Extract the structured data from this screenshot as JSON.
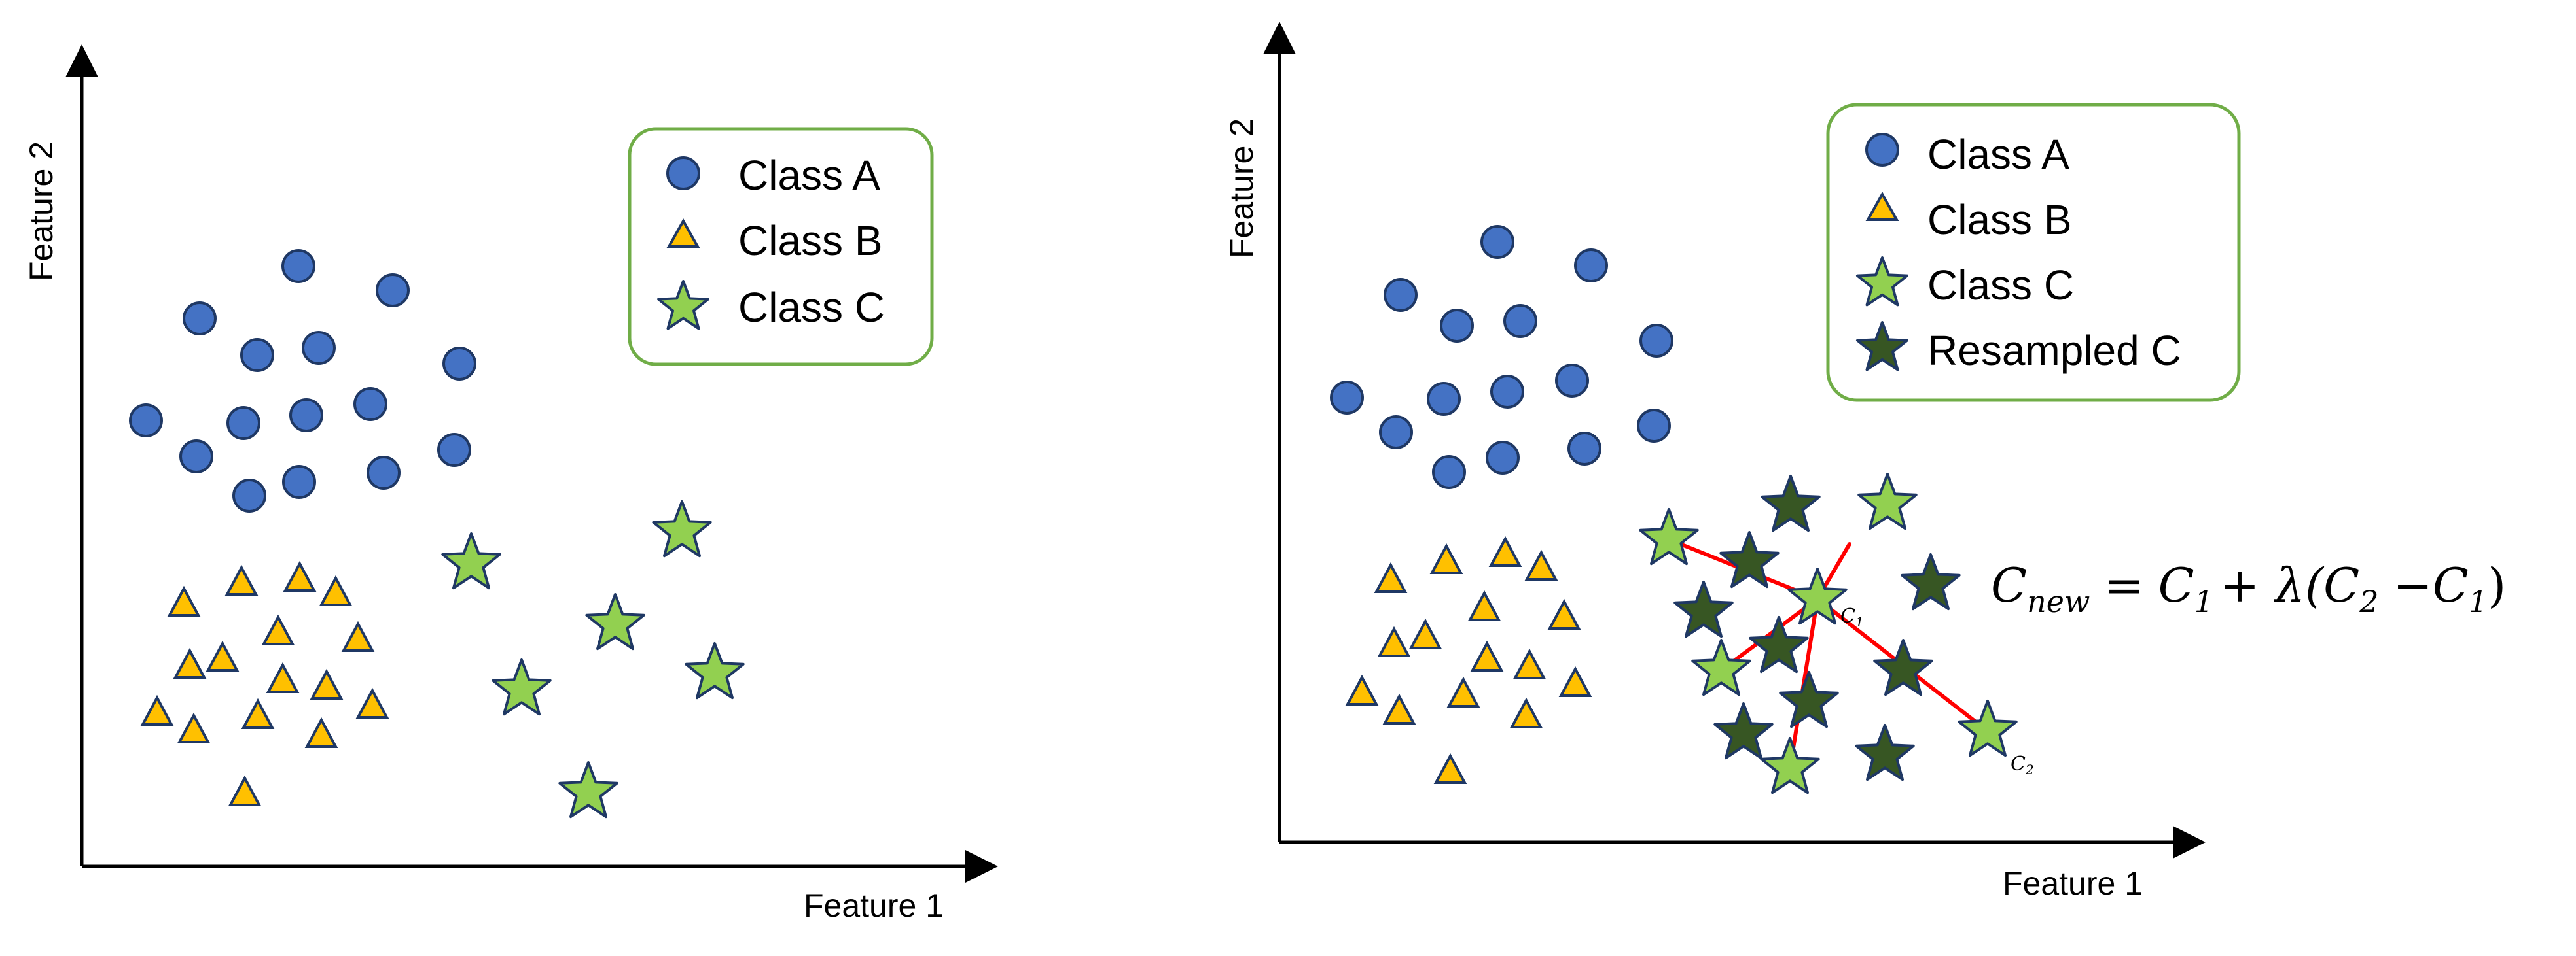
{
  "colors": {
    "class_a": "#4472C4",
    "class_b": "#FFC000",
    "class_c": "#92D050",
    "resampled_c": "#375623",
    "outline": "#1F3864",
    "legend_border": "#70AD47",
    "line": "#FF0000"
  },
  "panels": [
    {
      "xlabel": "Feature 1",
      "ylabel": "Feature 2",
      "legend": [
        {
          "label": "Class A",
          "marker": "circle"
        },
        {
          "label": "Class B",
          "marker": "triangle"
        },
        {
          "label": "Class C",
          "marker": "star"
        }
      ]
    },
    {
      "xlabel": "Feature 1",
      "ylabel": "Feature 2",
      "legend": [
        {
          "label": "Class A",
          "marker": "circle"
        },
        {
          "label": "Class B",
          "marker": "triangle"
        },
        {
          "label": "Class C",
          "marker": "star"
        },
        {
          "label": "Resampled C",
          "marker": "star-dark"
        }
      ],
      "formula": {
        "lhs_var": "C",
        "lhs_sub": "new",
        "op1": "=",
        "t1_var": "C",
        "t1_sub": "1",
        "op2": "+",
        "lambda": "λ(",
        "t2_var": "C",
        "t2_sub": "2",
        "minus": "−",
        "t3_var": "C",
        "t3_sub": "1",
        "close": ")"
      },
      "point_labels": {
        "c1_var": "C",
        "c1_sub": "1",
        "c2_var": "C",
        "c2_sub": "2"
      }
    }
  ]
}
